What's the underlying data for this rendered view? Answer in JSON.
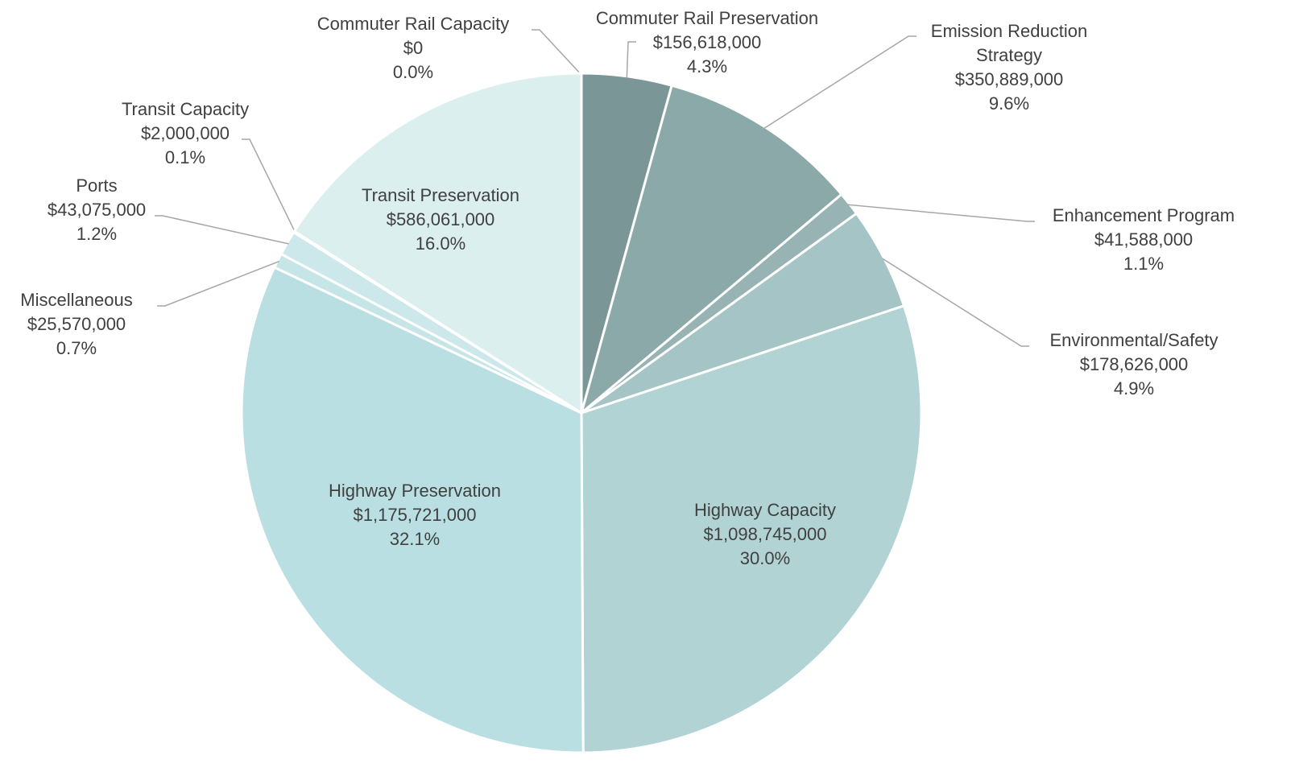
{
  "chart_data": {
    "type": "pie",
    "categories": [
      "Commuter Rail Capacity",
      "Commuter Rail Preservation",
      "Emission Reduction Strategy",
      "Enhancement Program",
      "Environmental/Safety",
      "Highway Capacity",
      "Highway Preservation",
      "Miscellaneous",
      "Ports",
      "Transit Capacity",
      "Transit Preservation"
    ],
    "values": [
      0,
      156618000,
      350889000,
      41588000,
      178626000,
      1098745000,
      1175721000,
      25570000,
      43075000,
      2000000,
      586061000
    ],
    "value_labels": [
      "$0",
      "$156,618,000",
      "$350,889,000",
      "$41,588,000",
      "$178,626,000",
      "$1,098,745,000",
      "$1,175,721,000",
      "$25,570,000",
      "$43,075,000",
      "$2,000,000",
      "$586,061,000"
    ],
    "percentages": [
      0,
      4.3,
      9.6,
      1.1,
      4.9,
      30,
      32.1,
      0.7,
      1.2,
      0.1,
      16
    ],
    "percentage_labels": [
      "0.0%",
      "4.3%",
      "9.6%",
      "1.1%",
      "4.9%",
      "30.0%",
      "32.1%",
      "0.7%",
      "1.2%",
      "0.1%",
      "16.0%"
    ],
    "colors": [
      "#6f8c8c",
      "#7a9696",
      "#8ca9aa",
      "#97b3b4",
      "#a5c4c6",
      "#b2d3d4",
      "#badfe2",
      "#c6e5e7",
      "#cde8ea",
      "#d4ebec",
      "#dcefef"
    ]
  }
}
